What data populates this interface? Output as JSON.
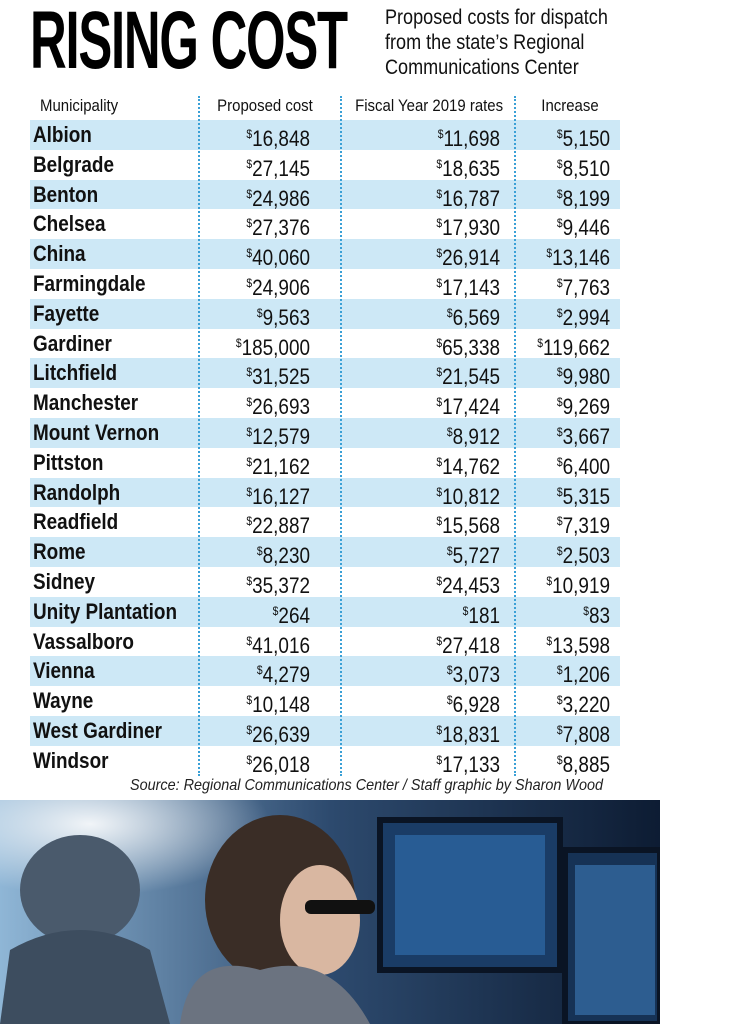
{
  "header": {
    "title": "RISING COST",
    "subtitle": [
      "Proposed costs for dispatch",
      "from the state’s Regional",
      "Communications Center"
    ]
  },
  "table": {
    "columns": [
      "Municipality",
      "Proposed cost",
      "Fiscal Year 2019 rates",
      "Increase"
    ],
    "rows": [
      [
        "Albion",
        "$16,848",
        "$11,698",
        "$5,150"
      ],
      [
        "Belgrade",
        "$27,145",
        "$18,635",
        "$8,510"
      ],
      [
        "Benton",
        "$24,986",
        "$16,787",
        "$8,199"
      ],
      [
        "Chelsea",
        "$27,376",
        "$17,930",
        "$9,446"
      ],
      [
        "China",
        "$40,060",
        "$26,914",
        "$13,146"
      ],
      [
        "Farmingdale",
        "$24,906",
        "$17,143",
        "$7,763"
      ],
      [
        "Fayette",
        "$9,563",
        "$6,569",
        "$2,994"
      ],
      [
        "Gardiner",
        "$185,000",
        "$65,338",
        "$119,662"
      ],
      [
        "Litchfield",
        "$31,525",
        "$21,545",
        "$9,980"
      ],
      [
        "Manchester",
        "$26,693",
        "$17,424",
        "$9,269"
      ],
      [
        "Mount Vernon",
        "$12,579",
        "$8,912",
        "$3,667"
      ],
      [
        "Pittston",
        "$21,162",
        "$14,762",
        "$6,400"
      ],
      [
        "Randolph",
        "$16,127",
        "$10,812",
        "$5,315"
      ],
      [
        "Readfield",
        "$22,887",
        "$15,568",
        "$7,319"
      ],
      [
        "Rome",
        "$8,230",
        "$5,727",
        "$2,503"
      ],
      [
        "Sidney",
        "$35,372",
        "$24,453",
        "$10,919"
      ],
      [
        "Unity Plantation",
        "$264",
        "$181",
        "$83"
      ],
      [
        "Vassalboro",
        "$41,016",
        "$27,418",
        "$13,598"
      ],
      [
        "Vienna",
        "$4,279",
        "$3,073",
        "$1,206"
      ],
      [
        "Wayne",
        "$10,148",
        "$6,928",
        "$3,220"
      ],
      [
        "West Gardiner",
        "$26,639",
        "$18,831",
        "$7,808"
      ],
      [
        "Windsor",
        "$26,018",
        "$17,133",
        "$8,885"
      ]
    ]
  },
  "source": "Source: Regional Communications Center / Staff graphic by Sharon Wood"
}
